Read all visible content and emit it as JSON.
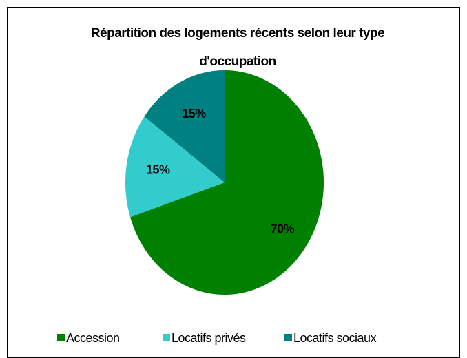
{
  "chart_data": {
    "type": "pie",
    "title": "Répartition des logements récents selon leur type d'occupation",
    "categories": [
      "Accession",
      "Locatifs privés",
      "Locatifs sociaux"
    ],
    "values": [
      70,
      15,
      15
    ],
    "value_labels": [
      "70%",
      "15%",
      "15%"
    ],
    "colors": [
      "#008000",
      "#33CCCC",
      "#008080"
    ],
    "legend": "bottom"
  }
}
